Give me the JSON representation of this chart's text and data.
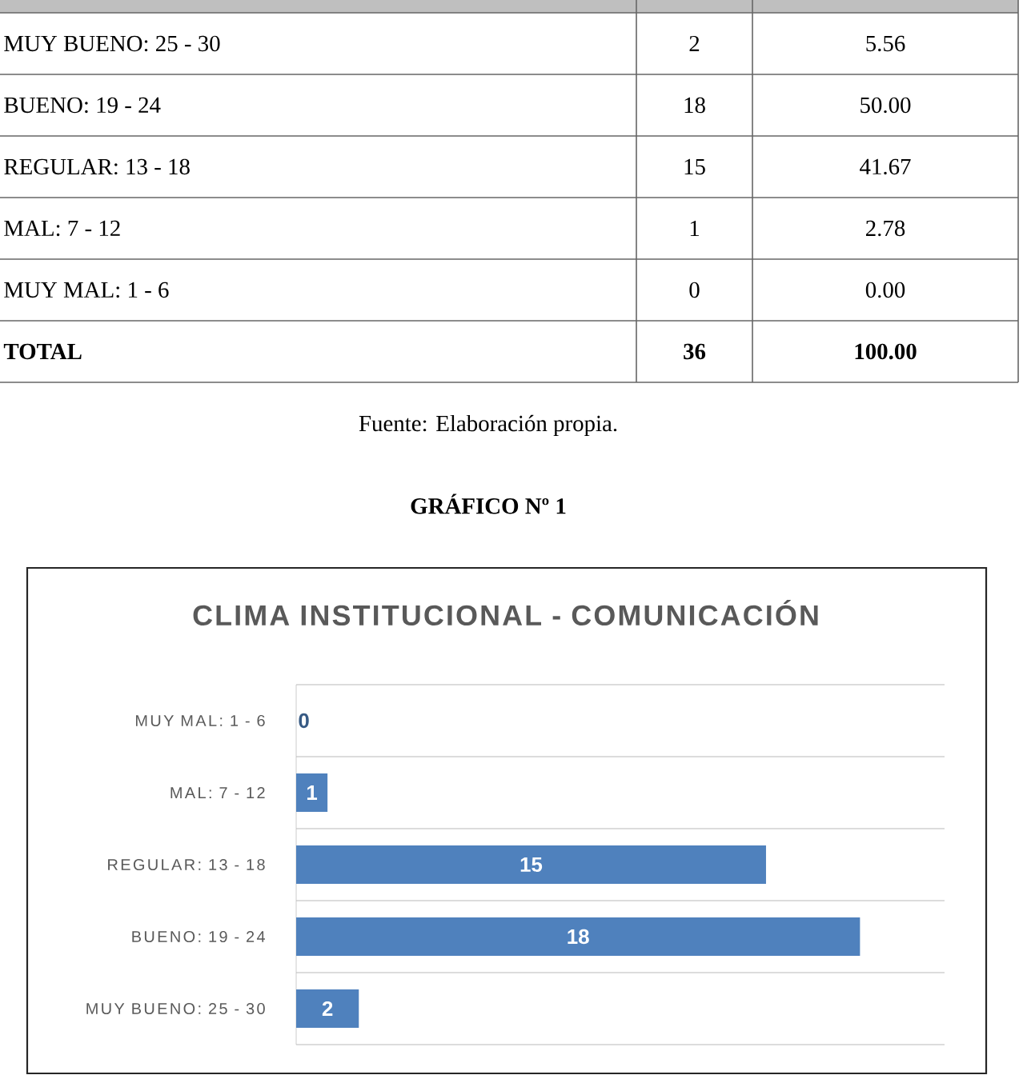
{
  "chart_data": [
    {
      "type": "other",
      "categories": [
        "MUY BUENO: 25 - 30",
        "BUENO: 19 - 24",
        "REGULAR: 13 - 18",
        "MAL: 7 - 12",
        "MUY MAL: 1 - 6",
        "TOTAL"
      ],
      "series": [
        {
          "values": [
            2,
            18,
            15,
            1,
            0,
            36
          ]
        },
        {
          "values": [
            5.56,
            50.0,
            41.67,
            2.78,
            0.0,
            100.0
          ],
          "value_labels": [
            "5.56",
            "50.00",
            "41.67",
            "2.78",
            "0.00",
            "100.00"
          ]
        }
      ],
      "data_labels": true,
      "annotations": [
        "Fuente: Elaboración propia."
      ]
    },
    {
      "type": "bar",
      "orientation": "horizontal",
      "title": "CLIMA INSTITUCIONAL - COMUNICACIÓN",
      "annotations": [
        "GRÁFICO Nº 1"
      ],
      "categories": [
        "MUY MAL: 1 - 6",
        "MAL: 7 - 12",
        "REGULAR: 13 - 18",
        "BUENO: 19 - 24",
        "MUY BUENO: 25 - 30"
      ],
      "values": [
        0,
        1,
        15,
        18,
        2
      ],
      "color": "#4f81bd",
      "data_labels": true,
      "grid": "y",
      "tick_labels": "y"
    }
  ]
}
